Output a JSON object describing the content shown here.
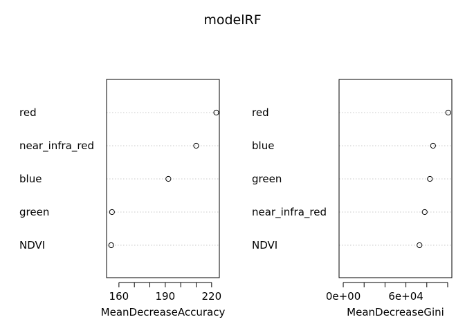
{
  "title": "modelRF",
  "chart_data": [
    {
      "type": "scatter",
      "subtype": "dotchart",
      "title": "",
      "xlabel": "MeanDecreaseAccuracy",
      "ylabel": "",
      "categories": [
        "red",
        "near_infra_red",
        "blue",
        "green",
        "NDVI"
      ],
      "values": [
        223,
        210,
        192,
        155.5,
        155
      ],
      "xlim": [
        152,
        225
      ],
      "ticks": [
        150,
        160,
        170,
        180,
        190,
        200,
        210,
        220,
        230
      ],
      "tick_labels": [
        {
          "value": 160,
          "label": "160"
        },
        {
          "value": 190,
          "label": "190"
        },
        {
          "value": 220,
          "label": "220"
        }
      ],
      "grid": "dotted horizontal",
      "legend": "none"
    },
    {
      "type": "scatter",
      "subtype": "dotchart",
      "title": "",
      "xlabel": "MeanDecreaseGini",
      "ylabel": "",
      "categories": [
        "red",
        "blue",
        "green",
        "near_infra_red",
        "NDVI"
      ],
      "values": [
        100500,
        86000,
        83000,
        78000,
        73000
      ],
      "xlim": [
        -4000,
        104000
      ],
      "ticks": [
        0,
        20000,
        40000,
        60000,
        80000,
        100000
      ],
      "tick_labels": [
        {
          "value": 0,
          "label": "0e+00"
        },
        {
          "value": 60000,
          "label": "6e+04"
        }
      ],
      "grid": "dotted horizontal",
      "legend": "none"
    }
  ]
}
